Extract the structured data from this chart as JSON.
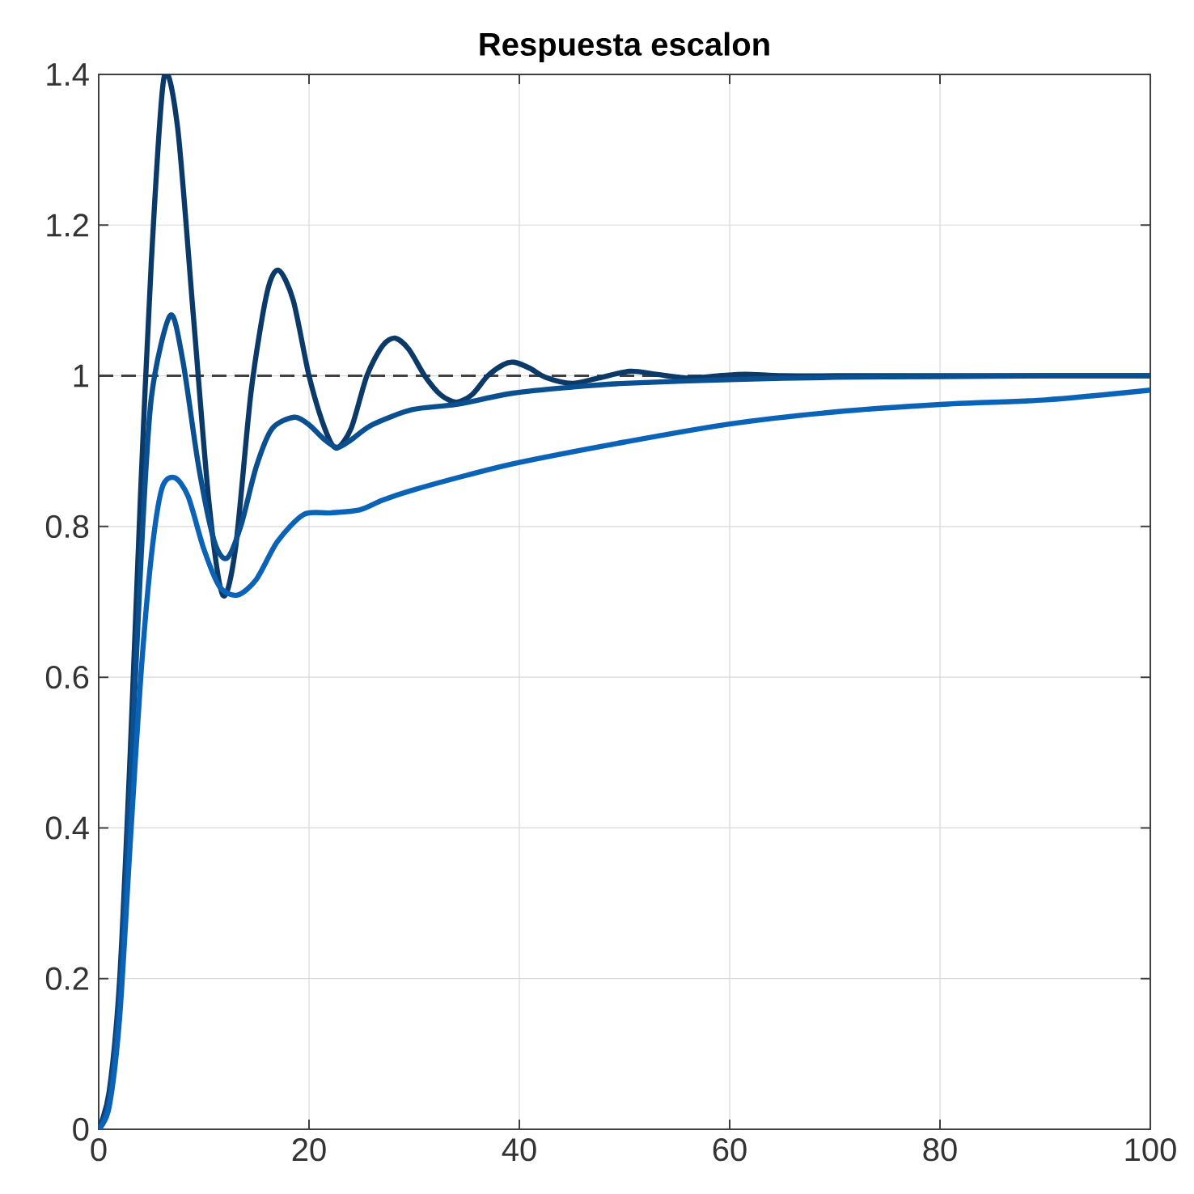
{
  "chart_data": {
    "type": "line",
    "title": "Respuesta escalon",
    "xlim": [
      0,
      100
    ],
    "ylim": [
      0,
      1.4
    ],
    "xticks": [
      0,
      20,
      40,
      60,
      80,
      100
    ],
    "yticks": [
      0,
      0.2,
      0.4,
      0.6,
      0.8,
      1,
      1.2,
      1.4
    ],
    "grid": true,
    "line_style": "solid",
    "marker": "none",
    "ref_lines": [
      {
        "axis": "y",
        "value": 1,
        "color": "#404040",
        "line_style": "dashed"
      }
    ],
    "series": [
      {
        "color": "#0b3a68",
        "x": [
          0,
          1,
          2,
          3,
          4,
          5,
          6.2,
          7.5,
          9,
          10.5,
          11.8,
          13,
          14.5,
          16,
          17.1,
          18.5,
          20,
          21.5,
          22.6,
          24,
          25.5,
          27,
          28.2,
          29.5,
          31,
          32.5,
          34,
          35.5,
          37,
          38.5,
          39.5,
          41,
          42.5,
          45,
          47.5,
          50.5,
          53,
          56,
          59,
          61.5,
          65,
          70,
          80,
          90,
          100
        ],
        "values": [
          0,
          0.05,
          0.2,
          0.5,
          0.85,
          1.15,
          1.395,
          1.33,
          1.08,
          0.83,
          0.709,
          0.77,
          0.98,
          1.11,
          1.14,
          1.1,
          1.0,
          0.93,
          0.904,
          0.93,
          1.0,
          1.04,
          1.05,
          1.035,
          1.0,
          0.975,
          0.965,
          0.975,
          1.0,
          1.015,
          1.018,
          1.01,
          0.998,
          0.99,
          0.997,
          1.006,
          1.002,
          0.997,
          1.0,
          1.002,
          1.0,
          1.0,
          1.0,
          1.0,
          1.0
        ]
      },
      {
        "color": "#0a4f8f",
        "x": [
          0,
          1,
          2,
          3,
          4,
          5,
          6.8,
          8,
          9.5,
          11,
          12.2,
          13.5,
          15,
          16.5,
          18.6,
          20,
          21.5,
          22.7,
          24,
          26,
          29.8,
          34,
          39.4,
          45,
          50,
          60,
          70,
          80,
          90,
          100
        ],
        "values": [
          0,
          0.04,
          0.18,
          0.45,
          0.75,
          0.97,
          1.08,
          1.02,
          0.88,
          0.78,
          0.758,
          0.8,
          0.88,
          0.93,
          0.945,
          0.935,
          0.915,
          0.905,
          0.915,
          0.935,
          0.955,
          0.962,
          0.977,
          0.985,
          0.99,
          0.995,
          0.998,
          0.999,
          1.0,
          1.0
        ]
      },
      {
        "color": "#0b63b8",
        "x": [
          0,
          1,
          2,
          3,
          4,
          5,
          6,
          7.2,
          8.5,
          10,
          11.5,
          13.2,
          15,
          17,
          19.5,
          22,
          24.8,
          27,
          29.8,
          35,
          40,
          50,
          60,
          70,
          80,
          90,
          100
        ],
        "values": [
          0,
          0.03,
          0.15,
          0.38,
          0.6,
          0.76,
          0.85,
          0.865,
          0.84,
          0.77,
          0.72,
          0.709,
          0.73,
          0.78,
          0.816,
          0.818,
          0.822,
          0.835,
          0.848,
          0.868,
          0.885,
          0.912,
          0.936,
          0.952,
          0.962,
          0.968,
          0.981
        ]
      }
    ]
  }
}
